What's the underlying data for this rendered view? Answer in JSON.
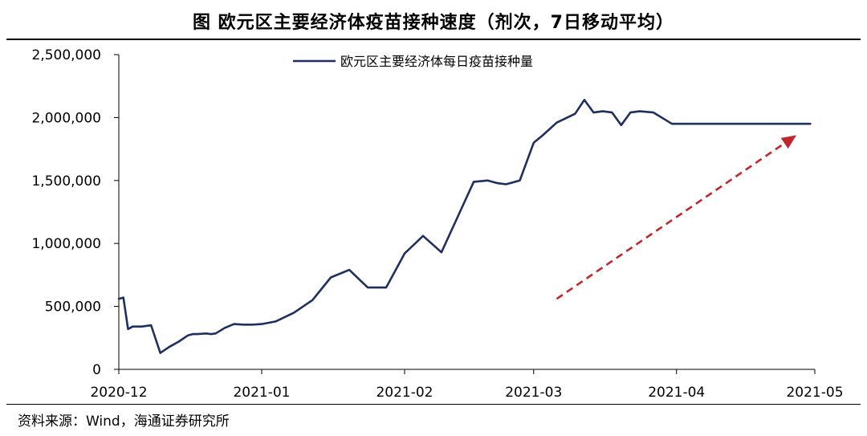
{
  "title": "图  欧元区主要经济体疫苗接种速度（剂次，7日移动平均）",
  "source": "资料来源：Wind，海通证券研究所",
  "colors": {
    "line": "#1f2f5f",
    "arrow": "#c0282d",
    "axis": "#000000"
  },
  "chart_data": {
    "type": "line",
    "xlabel": "",
    "ylabel": "",
    "ylim": [
      0,
      2500000
    ],
    "yticks": [
      0,
      500000,
      1000000,
      1500000,
      2000000,
      2500000
    ],
    "ytick_labels": [
      "0",
      "500,000",
      "1,000,000",
      "1,500,000",
      "2,000,000",
      "2,500,000"
    ],
    "xticks": [
      "2020-12-01",
      "2021-01-01",
      "2021-02-01",
      "2021-03-01",
      "2021-04-01",
      "2021-05-01"
    ],
    "xtick_labels": [
      "2020-12",
      "2021-01",
      "2021-02",
      "2021-03",
      "2021-04",
      "2021-05"
    ],
    "xlim": [
      "2020-12-01",
      "2021-05-01"
    ],
    "legend": {
      "position": "top-center"
    },
    "annotation": {
      "type": "arrow",
      "style": "dashed",
      "color": "#c0282d",
      "from": [
        "2021-03-06",
        560000
      ],
      "to": [
        "2021-04-27",
        1860000
      ]
    },
    "series": [
      {
        "name": "欧元区主要经济体每日疫苗接种量",
        "x": [
          "2020-12-01",
          "2020-12-02",
          "2020-12-03",
          "2020-12-04",
          "2020-12-06",
          "2020-12-08",
          "2020-12-10",
          "2020-12-12",
          "2020-12-14",
          "2020-12-16",
          "2020-12-17",
          "2020-12-18",
          "2020-12-20",
          "2020-12-21",
          "2020-12-22",
          "2020-12-24",
          "2020-12-26",
          "2020-12-28",
          "2020-12-30",
          "2021-01-01",
          "2021-01-04",
          "2021-01-08",
          "2021-01-12",
          "2021-01-16",
          "2021-01-20",
          "2021-01-24",
          "2021-01-28",
          "2021-02-01",
          "2021-02-05",
          "2021-02-09",
          "2021-02-13",
          "2021-02-16",
          "2021-02-19",
          "2021-02-21",
          "2021-02-23",
          "2021-02-26",
          "2021-03-01",
          "2021-03-03",
          "2021-03-06",
          "2021-03-10",
          "2021-03-12",
          "2021-03-14",
          "2021-03-16",
          "2021-03-18",
          "2021-03-20",
          "2021-03-22",
          "2021-03-24",
          "2021-03-27",
          "2021-03-31",
          "2021-04-03",
          "2021-04-06",
          "2021-04-09",
          "2021-04-11",
          "2021-04-13",
          "2021-04-15",
          "2021-04-17",
          "2021-04-19",
          "2021-04-20",
          "2021-04-21",
          "2021-04-22",
          "2021-04-24",
          "2021-04-25",
          "2021-04-26",
          "2021-04-28",
          "2021-04-29",
          "2021-04-30"
        ],
        "values": [
          560000,
          570000,
          320000,
          340000,
          340000,
          350000,
          130000,
          180000,
          220000,
          270000,
          280000,
          280000,
          285000,
          280000,
          285000,
          330000,
          360000,
          355000,
          355000,
          360000,
          380000,
          450000,
          550000,
          730000,
          790000,
          650000,
          650000,
          920000,
          1060000,
          930000,
          1250000,
          1490000,
          1500000,
          1480000,
          1470000,
          1500000,
          1800000,
          1860000,
          1960000,
          2030000,
          2140000,
          2040000,
          2050000,
          2040000,
          1940000,
          2040000,
          2050000,
          2040000,
          1950000,
          1950000,
          1950000,
          1950000,
          1950000,
          1950000,
          1950000,
          1950000,
          1950000,
          1950000,
          1950000,
          1950000,
          1950000,
          1950000,
          1950000,
          1950000,
          1950000,
          1950000
        ]
      }
    ]
  }
}
